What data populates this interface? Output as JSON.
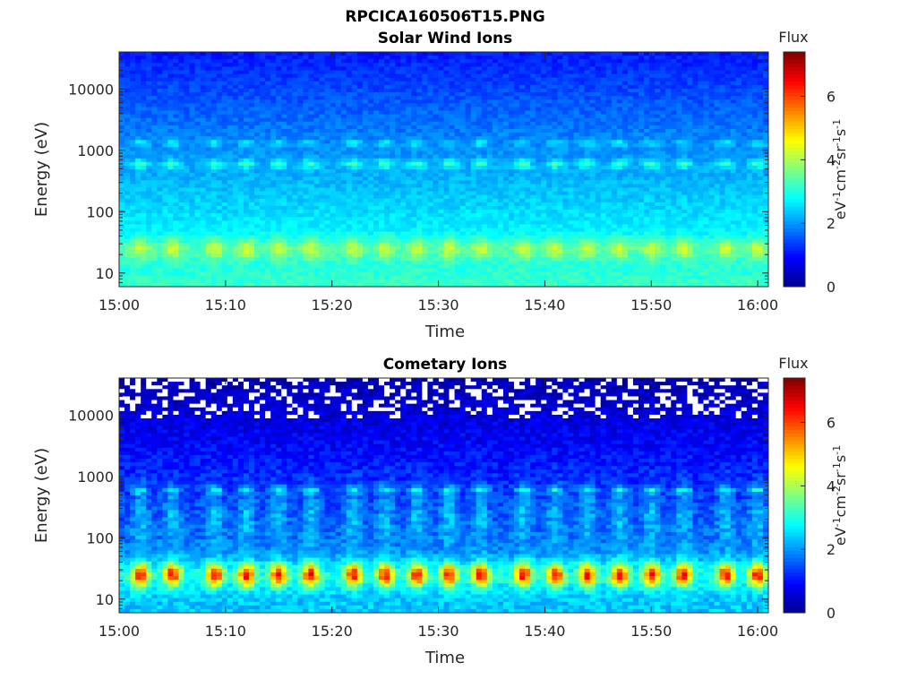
{
  "figure_title": "RPCICA160506T15.PNG",
  "colors": {
    "colormap": [
      "#00008f",
      "#0000ff",
      "#0080ff",
      "#00ffff",
      "#80ff80",
      "#ffff00",
      "#ff8000",
      "#ff0000",
      "#800000"
    ],
    "text": "#262626",
    "axes": "#262626"
  },
  "chart_data": [
    {
      "type": "heatmap",
      "title": "Solar Wind Ions",
      "xlabel": "Time",
      "ylabel": "Energy (eV)",
      "x_ticks": [
        "15:00",
        "15:10",
        "15:20",
        "15:30",
        "15:40",
        "15:50",
        "16:00"
      ],
      "x_range": [
        "15:00",
        "16:01"
      ],
      "y_scale": "log",
      "y_ticks": [
        10,
        100,
        1000,
        10000
      ],
      "y_range": [
        6,
        40000
      ],
      "colorbar": {
        "title": "Flux",
        "label": "eV-1cm-2sr-1s-1",
        "ticks": [
          0,
          2,
          4,
          6
        ],
        "range": [
          0,
          7.4
        ]
      },
      "features": [
        {
          "band_energy_ev": 25,
          "peak_value": 4.8,
          "description": "pulsed low-energy band"
        },
        {
          "band_energy_ev": 600,
          "peak_value": 4.6,
          "description": "pulsed mid-energy band"
        },
        {
          "band_energy_ev": 1300,
          "peak_value": 3.8,
          "description": "weak secondary band"
        }
      ],
      "pulse_times": [
        "15:02",
        "15:05",
        "15:09",
        "15:12",
        "15:15",
        "15:18",
        "15:22",
        "15:25",
        "15:28",
        "15:31",
        "15:34",
        "15:38",
        "15:41",
        "15:44",
        "15:47",
        "15:50",
        "15:53",
        "15:57",
        "16:00"
      ]
    },
    {
      "type": "heatmap",
      "title": "Cometary Ions",
      "xlabel": "Time",
      "ylabel": "Energy (eV)",
      "x_ticks": [
        "15:00",
        "15:10",
        "15:20",
        "15:30",
        "15:40",
        "15:50",
        "16:00"
      ],
      "x_range": [
        "15:00",
        "16:01"
      ],
      "y_scale": "log",
      "y_ticks": [
        10,
        100,
        1000,
        10000
      ],
      "y_range": [
        6,
        40000
      ],
      "colorbar": {
        "title": "Flux",
        "label": "eV-1cm-2sr-1s-1",
        "ticks": [
          0,
          2,
          4,
          6
        ],
        "range": [
          0,
          7.4
        ]
      },
      "features": [
        {
          "band_energy_ev": 25,
          "peak_value": 6.8,
          "description": "strong pulsed low-energy band"
        },
        {
          "band_energy_ev": 600,
          "peak_value": 3.2,
          "description": "pulsed mid-energy band"
        },
        {
          "band_energy_ev": 20000,
          "peak_value": 0.0,
          "description": "sparse / empty high-energy bins"
        }
      ],
      "pulse_times": [
        "15:02",
        "15:05",
        "15:09",
        "15:12",
        "15:15",
        "15:18",
        "15:22",
        "15:25",
        "15:28",
        "15:31",
        "15:34",
        "15:38",
        "15:41",
        "15:44",
        "15:47",
        "15:50",
        "15:53",
        "15:57",
        "16:00"
      ]
    }
  ]
}
